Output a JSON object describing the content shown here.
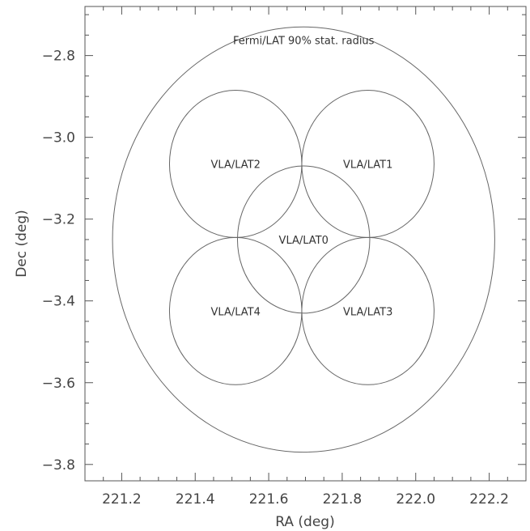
{
  "chart_data": {
    "type": "scatter",
    "title": "",
    "xlabel": "RA (deg)",
    "ylabel": "Dec (deg)",
    "xlim": [
      221.1,
      222.3
    ],
    "ylim": [
      -3.84,
      -2.68
    ],
    "x_ticks": [
      221.2,
      221.4,
      221.6,
      221.8,
      222.0,
      222.2
    ],
    "x_tick_labels": [
      "221.2",
      "221.4",
      "221.6",
      "221.8",
      "222.0",
      "222.2"
    ],
    "y_ticks": [
      -3.8,
      -3.6,
      -3.4,
      -3.2,
      -3.0,
      -2.8
    ],
    "y_tick_labels": [
      "−3.8",
      "−3.6",
      "−3.4",
      "−3.2",
      "−3.0",
      "−2.8"
    ],
    "x_minor_step": 0.05,
    "y_minor_step": 0.05,
    "grid": false,
    "circles": [
      {
        "label": "Fermi/LAT 90% stat. radius",
        "ra": 221.695,
        "dec": -3.25,
        "radius": 0.52,
        "label_position": "top"
      },
      {
        "label": "VLA/LAT0",
        "ra": 221.695,
        "dec": -3.25,
        "radius": 0.18,
        "label_position": "center"
      },
      {
        "label": "VLA/LAT1",
        "ra": 221.87,
        "dec": -3.065,
        "radius": 0.18,
        "label_position": "center"
      },
      {
        "label": "VLA/LAT2",
        "ra": 221.51,
        "dec": -3.065,
        "radius": 0.18,
        "label_position": "center"
      },
      {
        "label": "VLA/LAT3",
        "ra": 221.87,
        "dec": -3.425,
        "radius": 0.18,
        "label_position": "center"
      },
      {
        "label": "VLA/LAT4",
        "ra": 221.51,
        "dec": -3.425,
        "radius": 0.18,
        "label_position": "center"
      }
    ]
  }
}
